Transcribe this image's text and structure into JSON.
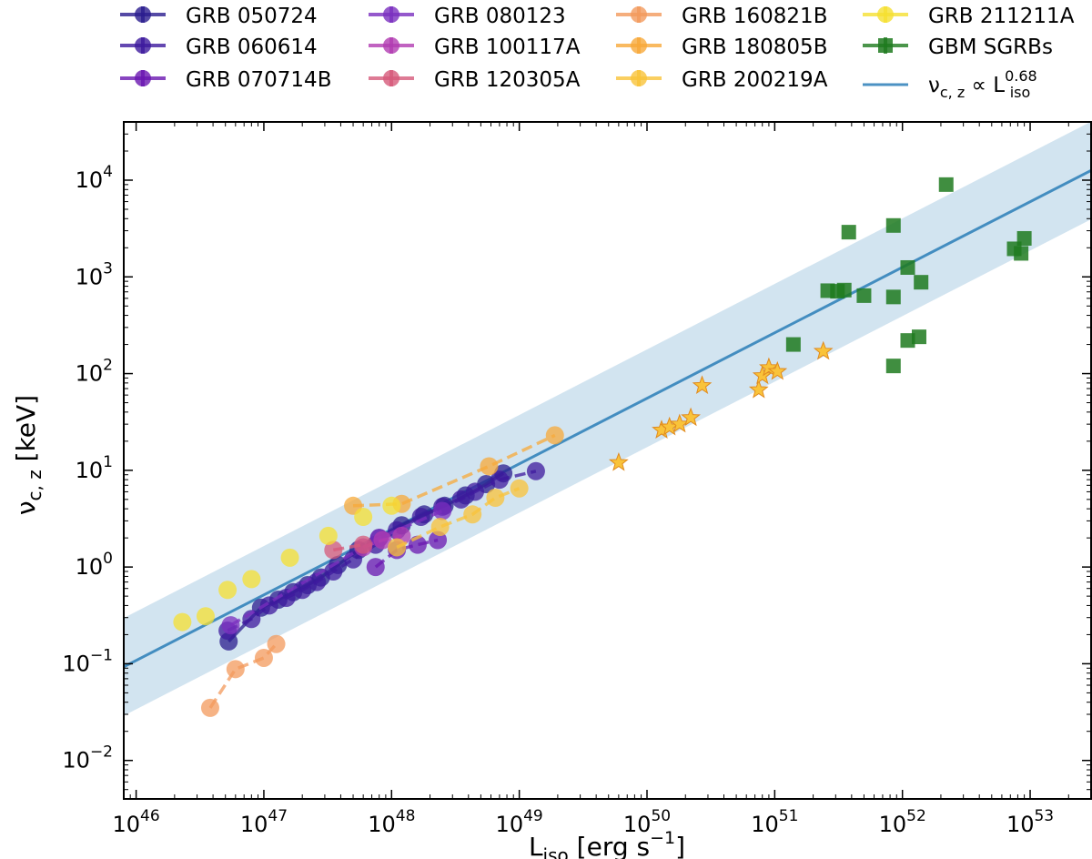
{
  "chart_data": {
    "type": "scatter",
    "xlabel": {
      "base": "L",
      "sub": "iso",
      "unit": "[erg s",
      "sup": "−1",
      "close": "]"
    },
    "ylabel": {
      "base": "ν",
      "sub": "c, z",
      "unit": "[keV]"
    },
    "x_scale": "log",
    "y_scale": "log",
    "xlim": [
      8e+45,
      3e+53
    ],
    "ylim": [
      0.004,
      40000
    ],
    "x_ticks": [
      {
        "value": 1e+46,
        "base": "10",
        "exp": "46"
      },
      {
        "value": 1e+47,
        "base": "10",
        "exp": "47"
      },
      {
        "value": 1e+48,
        "base": "10",
        "exp": "48"
      },
      {
        "value": 1e+49,
        "base": "10",
        "exp": "49"
      },
      {
        "value": 1e+50,
        "base": "10",
        "exp": "50"
      },
      {
        "value": 1e+51,
        "base": "10",
        "exp": "51"
      },
      {
        "value": 1e+52,
        "base": "10",
        "exp": "52"
      },
      {
        "value": 1e+53,
        "base": "10",
        "exp": "53"
      }
    ],
    "y_ticks": [
      {
        "value": 0.01,
        "base": "10",
        "exp": "−2"
      },
      {
        "value": 0.1,
        "base": "10",
        "exp": "−1"
      },
      {
        "value": 1,
        "base": "10",
        "exp": "0"
      },
      {
        "value": 10,
        "base": "10",
        "exp": "1"
      },
      {
        "value": 100,
        "base": "10",
        "exp": "2"
      },
      {
        "value": 1000,
        "base": "10",
        "exp": "3"
      },
      {
        "value": 10000,
        "base": "10",
        "exp": "4"
      }
    ],
    "fit": {
      "label": {
        "base": "ν",
        "sub": "c, z",
        "rel": " ∝ L",
        "sub2": "iso",
        "sup": "0.68"
      },
      "color": "#1f77b4",
      "band_color": "#a6c9e2",
      "points": [
        [
          8e+45,
          0.093
        ],
        [
          3e+53,
          12600
        ]
      ],
      "band_factor": 3.2
    },
    "legend": {
      "placement": "top, above plot, 4 columns",
      "items": [
        {
          "label": "GRB 050724",
          "color": "#2b1d8f",
          "marker": "circle"
        },
        {
          "label": "GRB 060614",
          "color": "#3d1a9e",
          "marker": "circle"
        },
        {
          "label": "GRB 070714B",
          "color": "#6a17b0",
          "marker": "circle"
        },
        {
          "label": "GRB 080123",
          "color": "#7b2fbf",
          "marker": "circle"
        },
        {
          "label": "GRB 100117A",
          "color": "#b23cb2",
          "marker": "circle"
        },
        {
          "label": "GRB 120305A",
          "color": "#d65a7a",
          "marker": "circle"
        },
        {
          "label": "GRB 160821B",
          "color": "#f39a5c",
          "marker": "circle"
        },
        {
          "label": "GRB 180805B",
          "color": "#f7a93a",
          "marker": "circle"
        },
        {
          "label": "GRB 200219A",
          "color": "#f9c33a",
          "marker": "circle"
        },
        {
          "label": "GRB 211211A",
          "color": "#f5e031",
          "marker": "circle"
        },
        {
          "label": "GBM SGRBs",
          "color": "#1e7a1e",
          "marker": "square"
        }
      ]
    },
    "series": [
      {
        "name": "GRB 050724",
        "color": "#2b1d8f",
        "marker": "circle",
        "line": "solid",
        "points": [
          [
            5.3e+46,
            0.17
          ],
          [
            9.5e+46,
            0.38
          ],
          [
            1.3e+47,
            0.46
          ],
          [
            1.7e+47,
            0.55
          ],
          [
            2.2e+47,
            0.65
          ],
          [
            2.8e+47,
            0.78
          ],
          [
            3.8e+47,
            1.05
          ],
          [
            5.5e+47,
            1.5
          ],
          [
            8e+47,
            2.0
          ],
          [
            1.2e+48,
            2.7
          ],
          [
            1.8e+48,
            3.5
          ],
          [
            2.6e+48,
            4.3
          ],
          [
            3.8e+48,
            5.5
          ],
          [
            5.5e+48,
            7.2
          ],
          [
            7.5e+48,
            9.3
          ]
        ]
      },
      {
        "name": "GRB 060614",
        "color": "#3d1a9e",
        "marker": "circle",
        "line": "dashed",
        "points": [
          [
            5.2e+46,
            0.22
          ],
          [
            8e+46,
            0.29
          ],
          [
            1.1e+47,
            0.4
          ],
          [
            1.5e+47,
            0.48
          ],
          [
            2e+47,
            0.58
          ],
          [
            2.6e+47,
            0.7
          ],
          [
            3.5e+47,
            0.9
          ],
          [
            5e+47,
            1.2
          ],
          [
            7.5e+47,
            1.7
          ],
          [
            1.1e+48,
            2.4
          ],
          [
            1.7e+48,
            3.3
          ],
          [
            2.5e+48,
            4.2
          ],
          [
            3.5e+48,
            5.0
          ],
          [
            4.5e+48,
            6.0
          ],
          [
            7e+48,
            8.0
          ],
          [
            1.35e+49,
            9.8
          ]
        ]
      },
      {
        "name": "GRB 070714B",
        "color": "#6a17b0",
        "marker": "circle",
        "line": "dashed",
        "points": [
          [
            7.5e+47,
            1.0
          ],
          [
            1.1e+48,
            1.5
          ],
          [
            1.6e+48,
            1.7
          ],
          [
            2.3e+48,
            1.9
          ]
        ]
      },
      {
        "name": "GRB 080123",
        "color": "#7b2fbf",
        "marker": "circle",
        "line": "dashed",
        "points": [
          [
            5.5e+46,
            0.25
          ],
          [
            8e+47,
            2.0
          ],
          [
            2.5e+48,
            3.8
          ]
        ]
      },
      {
        "name": "GRB 100117A",
        "color": "#b23cb2",
        "marker": "circle",
        "line": "dashed",
        "points": [
          [
            6e+47,
            1.6
          ],
          [
            8.5e+47,
            1.9
          ],
          [
            1.2e+48,
            2.1
          ]
        ]
      },
      {
        "name": "GRB 120305A",
        "color": "#d65a7a",
        "marker": "circle",
        "line": "dashed",
        "points": [
          [
            3.5e+47,
            1.5
          ],
          [
            6e+47,
            1.7
          ]
        ]
      },
      {
        "name": "GRB 160821B",
        "color": "#f39a5c",
        "marker": "circle",
        "line": "dashed",
        "points": [
          [
            3.8e+46,
            0.035
          ],
          [
            6e+46,
            0.088
          ],
          [
            1e+47,
            0.115
          ],
          [
            1.25e+47,
            0.16
          ]
        ]
      },
      {
        "name": "GRB 180805B",
        "color": "#f7a93a",
        "marker": "circle",
        "line": "dashed",
        "points": [
          [
            5e+47,
            4.3
          ],
          [
            1.2e+48,
            4.5
          ],
          [
            5.8e+48,
            11.0
          ],
          [
            1.9e+49,
            23.0
          ]
        ]
      },
      {
        "name": "GRB 200219A",
        "color": "#f9c33a",
        "marker": "circle",
        "line": "dashed",
        "points": [
          [
            1.1e+48,
            1.6
          ],
          [
            2.4e+48,
            2.6
          ],
          [
            4.3e+48,
            3.5
          ],
          [
            6.5e+48,
            5.2
          ],
          [
            1e+49,
            6.5
          ]
        ]
      },
      {
        "name": "GRB 211211A",
        "color": "#f5e031",
        "marker": "circle",
        "line": "none",
        "points": [
          [
            2.3e+46,
            0.27
          ],
          [
            3.5e+46,
            0.31
          ],
          [
            5.2e+46,
            0.58
          ],
          [
            8e+46,
            0.75
          ],
          [
            1.6e+47,
            1.25
          ],
          [
            3.2e+47,
            2.1
          ],
          [
            6e+47,
            3.3
          ],
          [
            1e+48,
            4.3
          ]
        ]
      },
      {
        "name": "GRB 211211A stars",
        "color": "#f9c33a",
        "marker": "star",
        "line": "none",
        "points": [
          [
            6e+49,
            12.0
          ],
          [
            1.3e+50,
            26.0
          ],
          [
            1.5e+50,
            28.0
          ],
          [
            1.8e+50,
            30.0
          ],
          [
            2.2e+50,
            35.0
          ],
          [
            2.7e+50,
            75.0
          ],
          [
            7.5e+50,
            68.0
          ],
          [
            8e+50,
            95.0
          ],
          [
            9e+50,
            115.0
          ],
          [
            1.05e+51,
            105.0
          ],
          [
            2.4e+51,
            170.0
          ]
        ]
      },
      {
        "name": "GBM SGRBs",
        "color": "#1e7a1e",
        "marker": "square",
        "line": "none",
        "points": [
          [
            1.4e+51,
            200
          ],
          [
            2.6e+51,
            720
          ],
          [
            3.1e+51,
            710
          ],
          [
            3.5e+51,
            730
          ],
          [
            3.8e+51,
            2900
          ],
          [
            5e+51,
            640
          ],
          [
            8.5e+51,
            3400
          ],
          [
            8.5e+51,
            620
          ],
          [
            8.5e+51,
            120
          ],
          [
            1.1e+52,
            1250
          ],
          [
            1.1e+52,
            220
          ],
          [
            1.35e+52,
            240
          ],
          [
            1.4e+52,
            880
          ],
          [
            2.2e+52,
            9000
          ],
          [
            7.5e+52,
            1950
          ],
          [
            8.5e+52,
            1750
          ],
          [
            9e+52,
            2500
          ]
        ]
      }
    ]
  }
}
